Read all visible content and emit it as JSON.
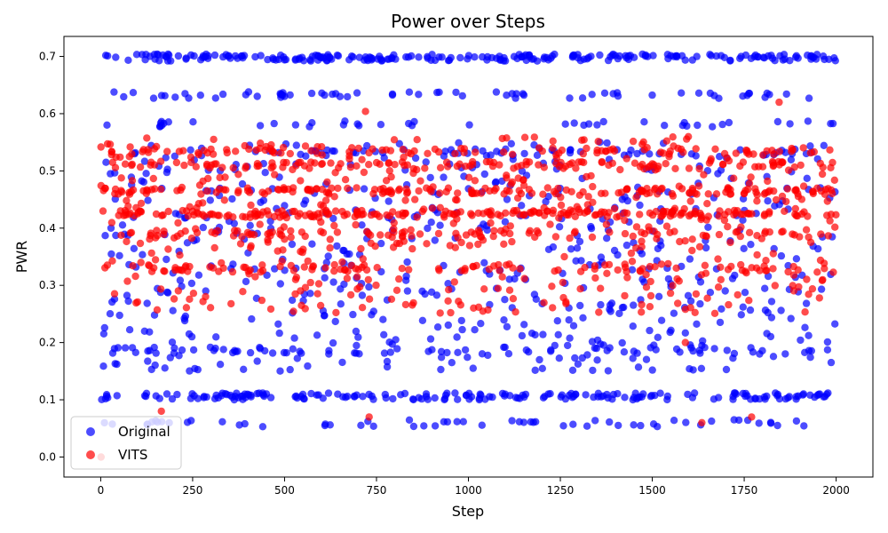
{
  "chart_data": {
    "type": "scatter",
    "title": "Power over Steps",
    "xlabel": "Step",
    "ylabel": "PWR",
    "xlim": [
      -100,
      2100
    ],
    "ylim": [
      -0.035,
      0.735
    ],
    "xticks": [
      0,
      250,
      500,
      750,
      1000,
      1250,
      1500,
      1750,
      2000
    ],
    "yticks": [
      0.0,
      0.1,
      0.2,
      0.3,
      0.4,
      0.5,
      0.6,
      0.7
    ],
    "ytick_labels": [
      "0.0",
      "0.1",
      "0.2",
      "0.3",
      "0.4",
      "0.5",
      "0.6",
      "0.7"
    ],
    "grid": false,
    "legend_position": "lower-left",
    "series": [
      {
        "name": "Original",
        "color": "#0000ff",
        "alpha": 0.7,
        "step_range": [
          0,
          2000
        ],
        "levels": [
          {
            "value": 0.698,
            "weight": 0.18
          },
          {
            "value": 0.106,
            "weight": 0.14
          },
          {
            "value": 0.059,
            "weight": 0.05
          },
          {
            "value": 0.632,
            "weight": 0.05
          },
          {
            "value": 0.582,
            "weight": 0.03
          },
          {
            "value": 0.532,
            "weight": 0.05
          },
          {
            "value": 0.186,
            "weight": 0.05
          }
        ],
        "spread": {
          "min": 0.15,
          "max": 0.55,
          "weight": 0.45
        },
        "point_count": 1300
      },
      {
        "name": "VITS",
        "color": "#ff0000",
        "alpha": 0.7,
        "step_range": [
          0,
          2000
        ],
        "levels": [
          {
            "value": 0.425,
            "weight": 0.14
          },
          {
            "value": 0.465,
            "weight": 0.12
          },
          {
            "value": 0.51,
            "weight": 0.08
          },
          {
            "value": 0.535,
            "weight": 0.08
          },
          {
            "value": 0.33,
            "weight": 0.08
          },
          {
            "value": 0.39,
            "weight": 0.07
          }
        ],
        "spread": {
          "min": 0.25,
          "max": 0.56,
          "weight": 0.43
        },
        "point_count": 1200,
        "outliers": [
          {
            "x": 1,
            "y": 0.0
          },
          {
            "x": 165,
            "y": 0.08
          },
          {
            "x": 730,
            "y": 0.07
          },
          {
            "x": 1770,
            "y": 0.07
          },
          {
            "x": 1635,
            "y": 0.06
          },
          {
            "x": 1845,
            "y": 0.62
          },
          {
            "x": 720,
            "y": 0.604
          },
          {
            "x": 1590,
            "y": 0.2
          }
        ]
      }
    ]
  }
}
